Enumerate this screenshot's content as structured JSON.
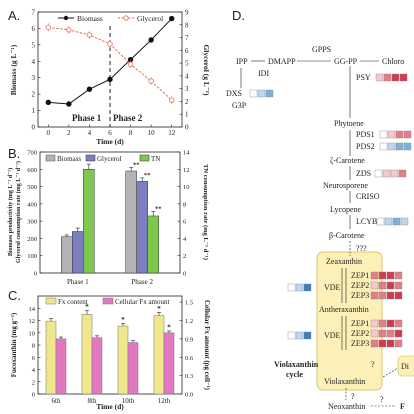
{
  "panels": {
    "a": "A.",
    "b": "B.",
    "c": "C.",
    "d": "D."
  },
  "chart_data": [
    {
      "panel": "A",
      "type": "line",
      "xlabel": "Time (d)",
      "ylabel": "Biomass (g L⁻¹)",
      "ylabel_right": "Glycerol (g L⁻¹)",
      "x_ticks": [
        0,
        2,
        4,
        6,
        8,
        10,
        12
      ],
      "y_ticks": [
        0,
        1,
        2,
        3,
        4,
        5,
        6,
        7
      ],
      "y_ticks_right": [
        0,
        1,
        2,
        3,
        4,
        5,
        6,
        7,
        8,
        9
      ],
      "xlim": [
        -1,
        13
      ],
      "ylim": [
        0,
        7
      ],
      "ylim_right": [
        0,
        9
      ],
      "phase_line_x": 6,
      "phase1_label": "Phase 1",
      "phase2_label": "Phase 2",
      "legend": [
        "Biomass",
        "Glycerol"
      ],
      "series": [
        {
          "name": "Biomass",
          "axis": "left",
          "x": [
            0,
            2,
            4,
            6,
            8,
            10,
            12
          ],
          "y": [
            1.5,
            1.4,
            2.3,
            2.9,
            4.1,
            5.3,
            6.6
          ]
        },
        {
          "name": "Glycerol",
          "axis": "right",
          "x": [
            0,
            2,
            4,
            6,
            8,
            10,
            12
          ],
          "y": [
            7.8,
            7.6,
            7.2,
            6.5,
            4.9,
            3.6,
            2.1
          ]
        }
      ],
      "colors": {
        "biomass": "#111111",
        "glycerol": "#e0705e"
      }
    },
    {
      "panel": "B",
      "type": "bar",
      "xlabel": "",
      "ylabel": "Biomass productivity (mg L⁻¹ d⁻¹)",
      "ylabel2": "Glycerol consumption rate (mg L⁻¹ d⁻¹)",
      "ylabel_right": "TN consumption rate (mg L⁻¹ d⁻¹)",
      "categories": [
        "Phase 1",
        "Phase 2"
      ],
      "y_ticks": [
        0,
        100,
        200,
        300,
        400,
        500,
        600,
        700
      ],
      "y_ticks_right": [
        0,
        2,
        4,
        6,
        8,
        10,
        12,
        14
      ],
      "ylim": [
        0,
        700
      ],
      "ylim_right": [
        0,
        14
      ],
      "legend": [
        "Biomass",
        "Glycerol",
        "TN"
      ],
      "series": [
        {
          "name": "Biomass",
          "axis": "left",
          "values": [
            210,
            590
          ],
          "err": [
            10,
            20
          ]
        },
        {
          "name": "Glycerol",
          "axis": "left",
          "values": [
            240,
            530
          ],
          "err": [
            20,
            20
          ]
        },
        {
          "name": "TN",
          "axis": "right",
          "values": [
            12,
            6.6
          ],
          "err": [
            0.6,
            0.5
          ]
        }
      ],
      "annotations": [
        "**",
        "**",
        "**"
      ],
      "colors": {
        "biomass": "#b3b3b3",
        "glycerol": "#7b7fbf",
        "tn": "#7ec84f"
      }
    },
    {
      "panel": "C",
      "type": "bar",
      "xlabel": "Time (d)",
      "ylabel": "Fucoxanthin (mg g⁻¹)",
      "ylabel_right": "Cellular Fx amount (pg cell⁻¹)",
      "categories": [
        "6th",
        "8th",
        "10th",
        "12th"
      ],
      "y_ticks": [
        0,
        2,
        4,
        6,
        8,
        10,
        12,
        14
      ],
      "y_ticks_right": [
        0.0,
        0.3,
        0.6,
        0.9,
        1.2,
        1.5
      ],
      "ylim": [
        0,
        16
      ],
      "ylim_right": [
        0,
        1.6
      ],
      "legend": [
        "Fx content",
        "Cellular Fx amount"
      ],
      "series": [
        {
          "name": "Fx content",
          "axis": "left",
          "values": [
            11.9,
            13.0,
            11.1,
            12.8
          ],
          "err": [
            0.4,
            0.6,
            0.4,
            0.5
          ]
        },
        {
          "name": "Cellular Fx amount",
          "axis": "right",
          "values": [
            0.9,
            0.92,
            0.84,
            1.0
          ],
          "err": [
            0.03,
            0.03,
            0.03,
            0.03
          ]
        }
      ],
      "annotations": [
        "*",
        "*",
        "*",
        "*"
      ],
      "colors": {
        "fx": "#f0e68c",
        "cellular": "#e377c2"
      }
    }
  ],
  "pathway": {
    "nodes": {
      "ipp": "IPP",
      "dmapp": "DMAPP",
      "ggpp": "GG-PP",
      "chloro": "Chloro",
      "dxs": "DXS",
      "g3p": "G3P",
      "idi": "IDI",
      "gpps": "GPPS",
      "psy": "PSY",
      "phytoene": "Phytoene",
      "pds1": "PDS1",
      "pds2": "PDS2",
      "zcarotene": "ζ-Carotene",
      "zds": "ZDS",
      "neurosporene": "Neurosporene",
      "criso": "CRISO",
      "lycopene": "Lycopene",
      "lcyb": "LCYB",
      "bcarotene": "β-Carotene",
      "qqq": "???",
      "zeaxanthin": "Zeaxanthin",
      "zep1a": "ZEP1",
      "zep2a": "ZEP2",
      "zep3a": "ZEP3",
      "vde1": "VDE",
      "antheraxanthin": "Antheraxanthin",
      "zep1b": "ZEP1",
      "zep2b": "ZEP2",
      "zep3b": "ZEP3",
      "vde2": "VDE",
      "violaxanthin": "Violaxanthin",
      "cycle1": "Violaxanthin",
      "cycle2": "cycle",
      "neoxanthin": "Neoxanthin",
      "q1": "?",
      "q2": "?",
      "q3": "?",
      "dia": "Di",
      "f": "F"
    },
    "colors": {
      "cycle_fill": "#fbf0b8",
      "cycle_stroke": "#d8b84a",
      "cycle_text": "#a0421e"
    },
    "heat_palette": [
      "#ffffff",
      "#f7c9cf",
      "#e57c8a",
      "#d23a4e",
      "#bdd7ee",
      "#7fb0d8",
      "#3e7fbf"
    ],
    "heat_rows": {
      "dxs": [
        0,
        4,
        5
      ],
      "psy": [
        1,
        2,
        3,
        3
      ],
      "pds1": [
        0,
        1,
        2,
        2
      ],
      "pds2": [
        0,
        4,
        5,
        5
      ],
      "zds": [
        0,
        1,
        1,
        2
      ],
      "lcyb": [
        0,
        4,
        5,
        4
      ],
      "zep1a": [
        2,
        3,
        3,
        2
      ],
      "zep2a": [
        1,
        2,
        3,
        2
      ],
      "zep3a": [
        2,
        2,
        3,
        3
      ],
      "vde1": [
        0,
        4,
        6
      ],
      "zep1b": [
        1,
        2,
        3,
        2
      ],
      "zep2b": [
        1,
        2,
        2,
        3
      ],
      "zep3b": [
        2,
        3,
        3,
        2
      ],
      "vde2": [
        0,
        4,
        6
      ]
    }
  }
}
